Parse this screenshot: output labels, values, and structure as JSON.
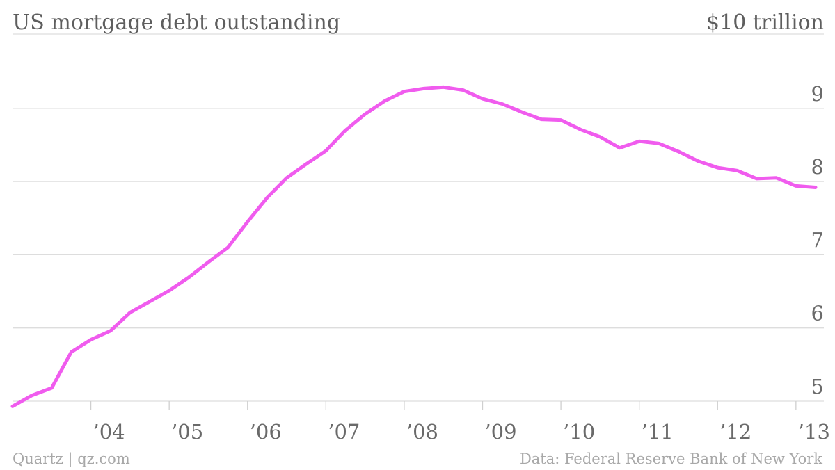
{
  "chart_data": {
    "type": "line",
    "title": "US mortgage debt outstanding",
    "unit_label": "$10 trillion",
    "source": "Data: Federal Reserve Bank of New York",
    "credit": "Quartz | qz.com",
    "xlim": [
      2003.0,
      2013.25
    ],
    "ylim": [
      4.95,
      10
    ],
    "y_ticks": [
      {
        "value": 5,
        "label": "5"
      },
      {
        "value": 6,
        "label": "6"
      },
      {
        "value": 7,
        "label": "7"
      },
      {
        "value": 8,
        "label": "8"
      },
      {
        "value": 9,
        "label": "9"
      }
    ],
    "x_ticks": [
      {
        "value": 2004,
        "label": "’04"
      },
      {
        "value": 2005,
        "label": "’05"
      },
      {
        "value": 2006,
        "label": "’06"
      },
      {
        "value": 2007,
        "label": "’07"
      },
      {
        "value": 2008,
        "label": "’08"
      },
      {
        "value": 2009,
        "label": "’09"
      },
      {
        "value": 2010,
        "label": "’10"
      },
      {
        "value": 2011,
        "label": "’11"
      },
      {
        "value": 2012,
        "label": "’12"
      },
      {
        "value": 2013,
        "label": "’13"
      }
    ],
    "grid": true,
    "series": [
      {
        "color": "#f05cee",
        "x": [
          2003.0,
          2003.25,
          2003.5,
          2003.75,
          2004.0,
          2004.25,
          2004.5,
          2004.75,
          2005.0,
          2005.25,
          2005.5,
          2005.75,
          2006.0,
          2006.25,
          2006.5,
          2006.75,
          2007.0,
          2007.25,
          2007.5,
          2007.75,
          2008.0,
          2008.25,
          2008.5,
          2008.75,
          2009.0,
          2009.25,
          2009.5,
          2009.75,
          2010.0,
          2010.25,
          2010.5,
          2010.75,
          2011.0,
          2011.25,
          2011.5,
          2011.75,
          2012.0,
          2012.25,
          2012.5,
          2012.75,
          2013.0,
          2013.25
        ],
        "values": [
          4.93,
          5.08,
          5.18,
          5.67,
          5.84,
          5.96,
          6.21,
          6.36,
          6.51,
          6.69,
          6.9,
          7.1,
          7.45,
          7.78,
          8.05,
          8.24,
          8.42,
          8.7,
          8.92,
          9.1,
          9.23,
          9.27,
          9.29,
          9.25,
          9.13,
          9.06,
          8.95,
          8.85,
          8.84,
          8.71,
          8.61,
          8.46,
          8.55,
          8.52,
          8.41,
          8.28,
          8.19,
          8.15,
          8.04,
          8.05,
          7.94,
          7.92
        ]
      }
    ]
  }
}
